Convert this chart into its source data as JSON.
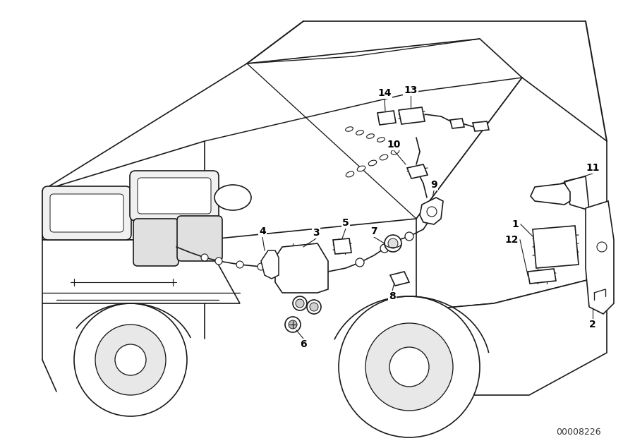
{
  "watermark": "00008226",
  "background_color": "#ffffff",
  "line_color": "#1a1a1a",
  "figsize": [
    9.0,
    6.35
  ],
  "dpi": 100
}
